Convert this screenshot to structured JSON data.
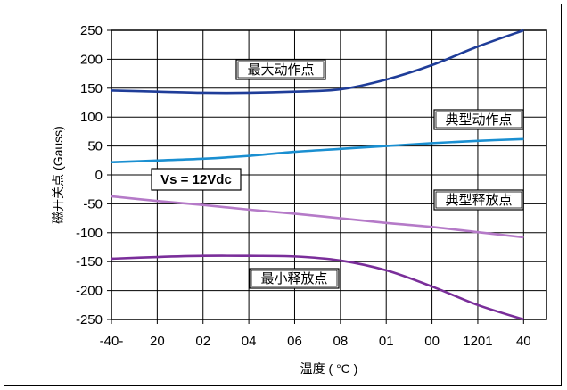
{
  "chart_data": {
    "type": "line",
    "xlabel": "温度 ( °C )",
    "ylabel": "磁开关点 (Gauss)",
    "tick_labels_x": [
      "-40-",
      "20",
      "02",
      "04",
      "06",
      "08",
      "01",
      "00",
      "1201",
      "40"
    ],
    "x": [
      -40,
      -20,
      0,
      20,
      40,
      60,
      80,
      100,
      120,
      140
    ],
    "xlim": [
      -40,
      150
    ],
    "ylim": [
      -250,
      250
    ],
    "yticks": [
      250,
      200,
      150,
      100,
      50,
      0,
      -50,
      -100,
      -150,
      -200,
      -250
    ],
    "grid": true,
    "series": [
      {
        "name": "最大动作点",
        "color": "#1f3d99",
        "values": [
          146,
          144,
          142,
          142,
          144,
          148,
          165,
          190,
          222,
          250
        ]
      },
      {
        "name": "典型动作点",
        "color": "#1a8fd1",
        "values": [
          22,
          25,
          28,
          33,
          40,
          45,
          50,
          55,
          59,
          62
        ]
      },
      {
        "name": "典型释放点",
        "color": "#b57ac8",
        "values": [
          -37,
          -45,
          -52,
          -60,
          -67,
          -75,
          -83,
          -90,
          -99,
          -108
        ]
      },
      {
        "name": "最小释放点",
        "color": "#7a2e9a",
        "values": [
          -145,
          -142,
          -140,
          -140,
          -141,
          -148,
          -165,
          -193,
          -225,
          -250
        ]
      }
    ],
    "annotations": [
      {
        "text": "最大动作点"
      },
      {
        "text": "典型动作点"
      },
      {
        "text": "典型释放点"
      },
      {
        "text": "最小释放点"
      },
      {
        "text": "Vs = 12Vdc"
      }
    ]
  }
}
